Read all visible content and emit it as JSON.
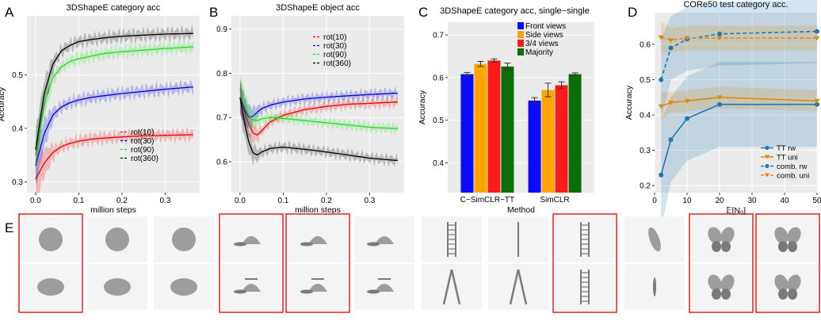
{
  "panel_letters": [
    "A",
    "B",
    "C",
    "D",
    "E"
  ],
  "chart_data": [
    {
      "type": "line",
      "panel": "A",
      "title": "3DShapeE category acc",
      "xlabel": "million steps",
      "ylabel": "Accuracy",
      "xlim": [
        -0.02,
        0.38
      ],
      "ylim": [
        0.28,
        0.61
      ],
      "xticks": [
        "0.0",
        "0.1",
        "0.2",
        "0.3"
      ],
      "yticks": [
        "0.3",
        "0.4",
        "0.5"
      ],
      "legend_position": "lower-right",
      "series": [
        {
          "name": "rot(10)",
          "color": "#ee0000",
          "x": [
            0.0,
            0.02,
            0.04,
            0.06,
            0.08,
            0.1,
            0.13,
            0.16,
            0.2,
            0.25,
            0.3,
            0.36
          ],
          "y": [
            0.305,
            0.335,
            0.355,
            0.366,
            0.372,
            0.376,
            0.38,
            0.382,
            0.384,
            0.386,
            0.387,
            0.388
          ]
        },
        {
          "name": "rot(30)",
          "color": "#0000dd",
          "x": [
            0.0,
            0.02,
            0.04,
            0.06,
            0.08,
            0.1,
            0.13,
            0.16,
            0.2,
            0.25,
            0.3,
            0.36
          ],
          "y": [
            0.33,
            0.39,
            0.425,
            0.44,
            0.448,
            0.453,
            0.458,
            0.461,
            0.465,
            0.469,
            0.473,
            0.477
          ]
        },
        {
          "name": "rot(90)",
          "color": "#22dd22",
          "x": [
            0.0,
            0.02,
            0.04,
            0.06,
            0.08,
            0.1,
            0.13,
            0.16,
            0.2,
            0.25,
            0.3,
            0.36
          ],
          "y": [
            0.35,
            0.445,
            0.495,
            0.515,
            0.525,
            0.53,
            0.535,
            0.54,
            0.543,
            0.546,
            0.549,
            0.552
          ]
        },
        {
          "name": "rot(360)",
          "color": "#000000",
          "x": [
            0.0,
            0.02,
            0.04,
            0.06,
            0.08,
            0.1,
            0.13,
            0.16,
            0.2,
            0.25,
            0.3,
            0.36
          ],
          "y": [
            0.36,
            0.465,
            0.52,
            0.545,
            0.555,
            0.562,
            0.566,
            0.569,
            0.572,
            0.574,
            0.576,
            0.577
          ]
        }
      ]
    },
    {
      "type": "line",
      "panel": "B",
      "title": "3DShapeE object acc",
      "xlabel": "million steps",
      "ylabel": "",
      "xlim": [
        -0.02,
        0.38
      ],
      "ylim": [
        0.53,
        0.93
      ],
      "xticks": [
        "0.0",
        "0.1",
        "0.2",
        "0.3"
      ],
      "yticks": [
        "0.6",
        "0.7",
        "0.8",
        "0.9"
      ],
      "legend_position": "upper-right",
      "series": [
        {
          "name": "rot(10)",
          "color": "#ee0000",
          "x": [
            0.0,
            0.01,
            0.02,
            0.03,
            0.04,
            0.05,
            0.07,
            0.1,
            0.15,
            0.2,
            0.25,
            0.3,
            0.36
          ],
          "y": [
            0.745,
            0.715,
            0.685,
            0.665,
            0.66,
            0.67,
            0.69,
            0.705,
            0.718,
            0.725,
            0.73,
            0.732,
            0.735
          ]
        },
        {
          "name": "rot(30)",
          "color": "#0000dd",
          "x": [
            0.0,
            0.01,
            0.02,
            0.03,
            0.04,
            0.05,
            0.07,
            0.1,
            0.15,
            0.2,
            0.25,
            0.3,
            0.36
          ],
          "y": [
            0.745,
            0.72,
            0.7,
            0.703,
            0.712,
            0.72,
            0.728,
            0.735,
            0.742,
            0.746,
            0.749,
            0.752,
            0.755
          ]
        },
        {
          "name": "rot(90)",
          "color": "#22dd22",
          "x": [
            0.0,
            0.01,
            0.02,
            0.03,
            0.04,
            0.05,
            0.07,
            0.1,
            0.15,
            0.2,
            0.25,
            0.3,
            0.36
          ],
          "y": [
            0.765,
            0.73,
            0.705,
            0.695,
            0.693,
            0.697,
            0.7,
            0.698,
            0.693,
            0.688,
            0.683,
            0.678,
            0.675
          ]
        },
        {
          "name": "rot(360)",
          "color": "#000000",
          "x": [
            0.0,
            0.01,
            0.02,
            0.03,
            0.04,
            0.05,
            0.07,
            0.1,
            0.15,
            0.2,
            0.25,
            0.3,
            0.36
          ],
          "y": [
            0.745,
            0.69,
            0.645,
            0.62,
            0.615,
            0.622,
            0.63,
            0.633,
            0.628,
            0.622,
            0.615,
            0.608,
            0.603
          ]
        }
      ]
    },
    {
      "type": "bar",
      "panel": "C",
      "title": "3DShapeE category acc, single−single",
      "xlabel": "Method",
      "ylabel": "Accuracy",
      "ylim": [
        0.33,
        0.73
      ],
      "yticks": [
        "0.4",
        "0.5",
        "0.6",
        "0.7"
      ],
      "categories": [
        "C−SimCLR−TT",
        "SimCLR"
      ],
      "legend_position": "upper-right",
      "series": [
        {
          "name": "Front views",
          "color": "#0a0aff",
          "values": [
            0.608,
            0.546
          ],
          "errors": [
            0.004,
            0.007
          ]
        },
        {
          "name": "Side views",
          "color": "#ffa500",
          "values": [
            0.632,
            0.571
          ],
          "errors": [
            0.006,
            0.016
          ]
        },
        {
          "name": "3/4 views",
          "color": "#ff1a1a",
          "values": [
            0.64,
            0.582
          ],
          "errors": [
            0.004,
            0.008
          ]
        },
        {
          "name": "Majority",
          "color": "#0a6e0a",
          "values": [
            0.626,
            0.608
          ],
          "errors": [
            0.008,
            0.003
          ]
        }
      ]
    },
    {
      "type": "line",
      "panel": "D",
      "title": "CORe50 test category acc.",
      "xlabel": "𝔼[Nₒ]",
      "ylabel": "Accuracy",
      "xlim": [
        0,
        50
      ],
      "ylim": [
        0.18,
        0.69
      ],
      "xticks": [
        "0",
        "10",
        "20",
        "30",
        "40",
        "50"
      ],
      "yticks": [
        "0.2",
        "0.3",
        "0.4",
        "0.5",
        "0.6"
      ],
      "legend_position": "lower-right",
      "series": [
        {
          "name": "TT rw",
          "color": "#1f77b4",
          "x": [
            2,
            5,
            10,
            20,
            50
          ],
          "y": [
            0.23,
            0.33,
            0.39,
            0.43,
            0.43
          ]
        },
        {
          "name": "TT uni",
          "color": "#d98c10",
          "x": [
            2,
            5,
            10,
            20,
            50
          ],
          "y": [
            0.425,
            0.435,
            0.44,
            0.45,
            0.44
          ]
        },
        {
          "name": "comb. rw",
          "color": "#1f77b4",
          "x": [
            2,
            5,
            10,
            20,
            50
          ],
          "y": [
            0.5,
            0.59,
            0.615,
            0.63,
            0.637
          ]
        },
        {
          "name": "comb. uni",
          "color": "#d98c10",
          "x": [
            2,
            5,
            10,
            20,
            50
          ],
          "y": [
            0.62,
            0.612,
            0.618,
            0.618,
            0.618
          ]
        }
      ]
    }
  ],
  "panel_e": {
    "groups": [
      {
        "object": "ball",
        "images": [
          [
            "sphere",
            "sphere",
            "sphere"
          ],
          [
            "ellipsoid",
            "ellipsoid",
            "ellipsoid"
          ]
        ],
        "highlighted_columns": [
          0
        ]
      },
      {
        "object": "cap",
        "images": [
          [
            "cap",
            "cap",
            "cap"
          ],
          [
            "cap-propeller",
            "cap-propeller",
            "cap-propeller"
          ]
        ],
        "highlighted_columns": [
          0,
          1
        ]
      },
      {
        "object": "ladder",
        "images": [
          [
            "ladder",
            "ladder-edge",
            "ladder"
          ],
          [
            "stepladder",
            "stepladder",
            "ladder"
          ]
        ],
        "highlighted_columns": [
          2
        ]
      },
      {
        "object": "butterfly",
        "images": [
          [
            "butterfly-side",
            "butterfly",
            "butterfly"
          ],
          [
            "butterfly-edge",
            "butterfly",
            "butterfly"
          ]
        ],
        "highlighted_columns": [
          1,
          2
        ]
      }
    ]
  }
}
